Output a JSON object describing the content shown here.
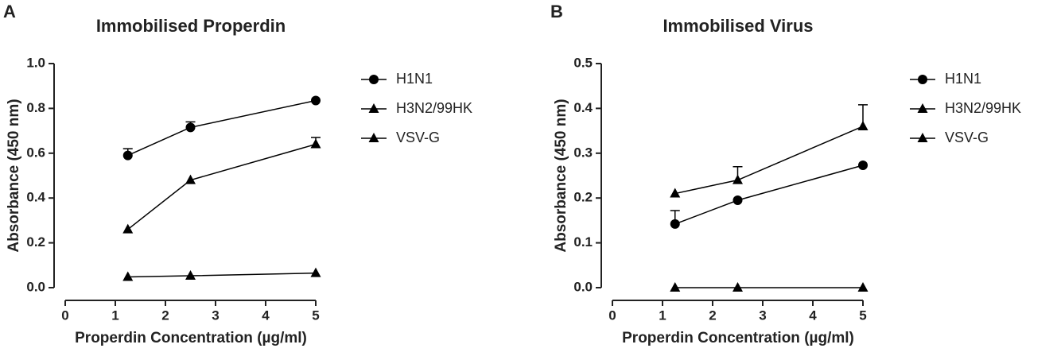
{
  "chart_data": [
    {
      "type": "line",
      "label": "A",
      "title": "Immobilised Properdin",
      "xlabel": "Properdin Concentration (µg/ml)",
      "ylabel": "Absorbance (450 nm)",
      "x": [
        1.25,
        2.5,
        5
      ],
      "series": [
        {
          "name": "H1N1",
          "color": "#000000",
          "marker": "circle",
          "values": [
            0.59,
            0.715,
            0.835
          ],
          "errors": [
            0.03,
            0.025,
            null
          ]
        },
        {
          "name": "H3N2/99HK",
          "color": "#000000",
          "marker": "triangle",
          "values": [
            0.26,
            0.48,
            0.64
          ],
          "errors": [
            null,
            null,
            0.03
          ]
        },
        {
          "name": "VSV-G",
          "color": "#000000",
          "marker": "triangle",
          "values": [
            0.048,
            0.053,
            0.065
          ],
          "errors": [
            null,
            null,
            null
          ]
        }
      ],
      "xlim": [
        0,
        5
      ],
      "xticks": [
        0,
        1,
        2,
        3,
        4,
        5
      ],
      "ylim": [
        0,
        1
      ],
      "yticks": [
        {
          "value": 0,
          "label": "0.0"
        },
        0.2,
        0.4,
        0.6,
        0.8,
        {
          "value": 1,
          "label": "1.0"
        }
      ]
    },
    {
      "type": "line",
      "label": "B",
      "title": "Immobilised  Virus",
      "xlabel": "Properdin Concentration (µg/ml)",
      "ylabel": "Absorbance (450 nm)",
      "x": [
        1.25,
        2.5,
        5
      ],
      "series": [
        {
          "name": "H1N1",
          "color": "#000000",
          "marker": "circle",
          "values": [
            0.142,
            0.195,
            0.273
          ],
          "errors": [
            0.03,
            null,
            null
          ]
        },
        {
          "name": "H3N2/99HK",
          "color": "#000000",
          "marker": "triangle",
          "values": [
            0.21,
            0.24,
            0.36
          ],
          "errors": [
            null,
            0.03,
            0.048
          ]
        },
        {
          "name": "VSV-G",
          "color": "#000000",
          "marker": "triangle",
          "values": [
            0,
            0,
            0
          ],
          "errors": [
            null,
            null,
            null
          ]
        }
      ],
      "xlim": [
        0,
        5
      ],
      "xticks": [
        0,
        1,
        2,
        3,
        4,
        5
      ],
      "ylim": [
        0,
        0.5
      ],
      "yticks": [
        {
          "value": 0,
          "label": "0.0"
        },
        0.1,
        0.2,
        0.3,
        0.4,
        0.5
      ]
    }
  ]
}
